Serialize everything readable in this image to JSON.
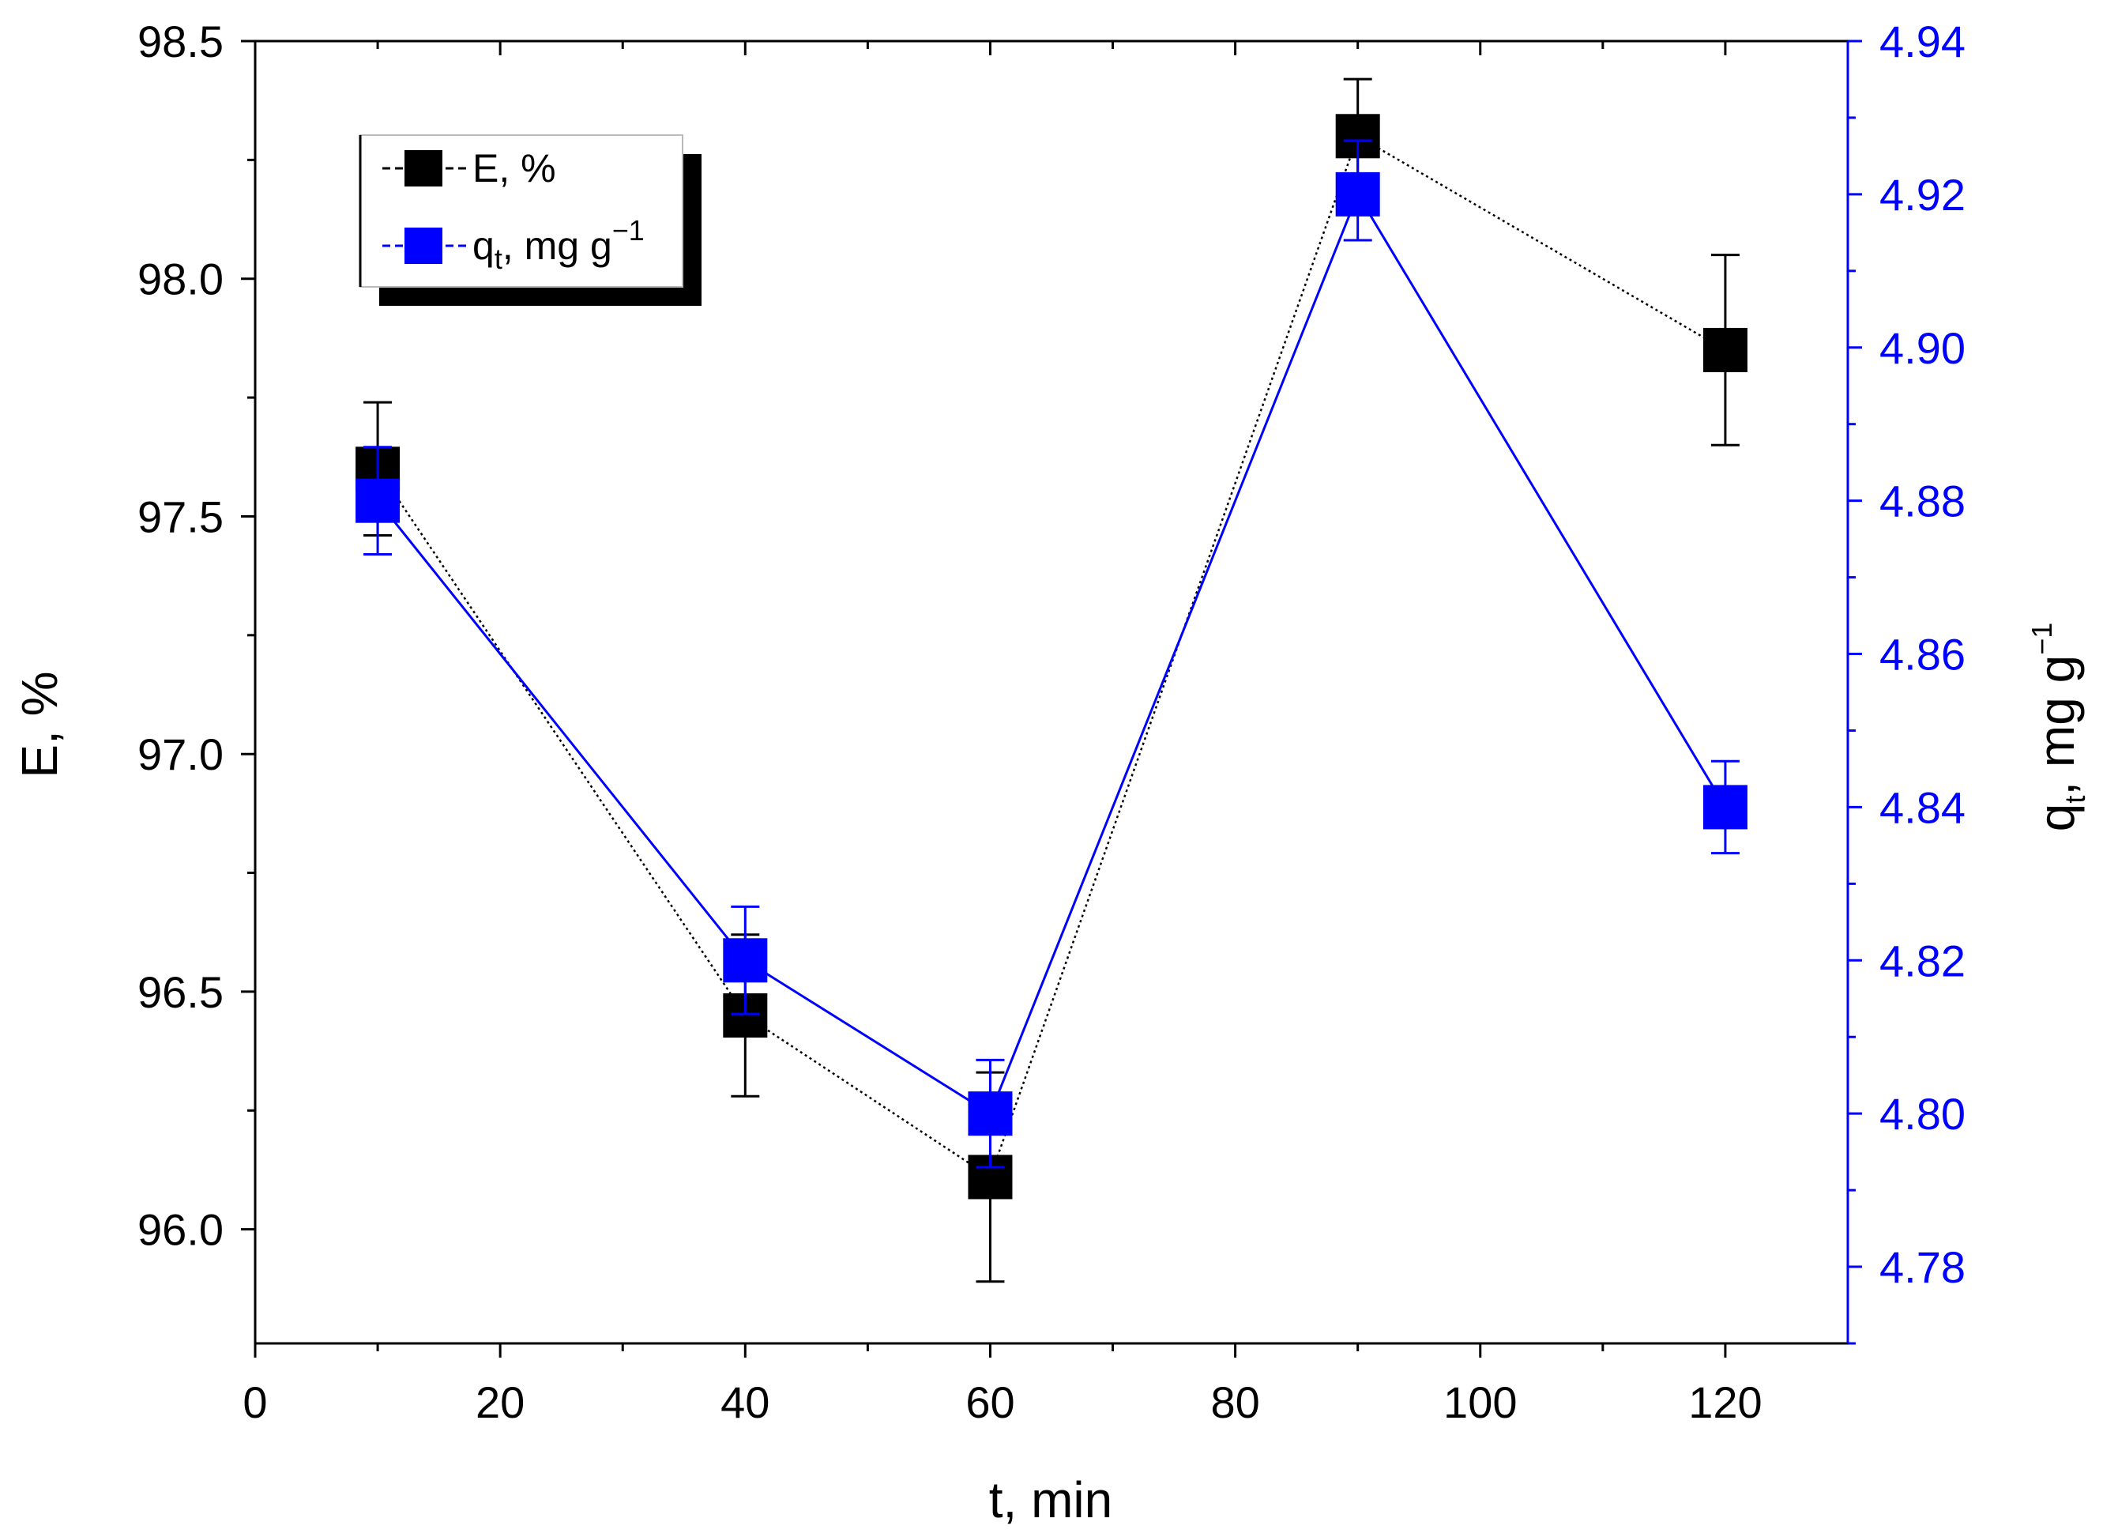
{
  "chart_data": {
    "type": "scatter",
    "x_label": {
      "main": "t, min"
    },
    "y_left_label": {
      "main": "E, %"
    },
    "y_right_label": {
      "q": "q",
      "sub": "t",
      "rest": ", mg g",
      "sup": "−1"
    },
    "x_ticks": [
      "0",
      "20",
      "40",
      "60",
      "80",
      "100",
      "120"
    ],
    "y_left_ticks": [
      "96.0",
      "96.5",
      "97.0",
      "97.5",
      "98.0",
      "98.5"
    ],
    "y_right_ticks": [
      "4.78",
      "4.80",
      "4.82",
      "4.84",
      "4.86",
      "4.88",
      "4.90",
      "4.92",
      "4.94"
    ],
    "x_range": [
      0,
      130
    ],
    "y_left_range": [
      95.76,
      98.5
    ],
    "y_right_range": [
      4.77,
      4.94
    ],
    "legend": {
      "position": "top-left",
      "items": [
        {
          "label": "E, %"
        },
        {
          "q": "q",
          "sub": "t",
          "rest": ", mg g",
          "sup": "−1"
        }
      ]
    },
    "series": [
      {
        "name": "E, %",
        "axis": "left",
        "color": "#000000",
        "line_style": "dotted",
        "x": [
          10,
          40,
          60,
          90,
          120
        ],
        "y": [
          97.6,
          96.45,
          96.11,
          98.3,
          97.85
        ],
        "err_up": [
          0.14,
          0.17,
          0.22,
          0.12,
          0.2
        ],
        "err_down": [
          0.14,
          0.17,
          0.22,
          0.12,
          0.2
        ]
      },
      {
        "name": "q_t, mg g-1",
        "axis": "right",
        "color": "#0000ff",
        "line_style": "solid",
        "x": [
          10,
          40,
          60,
          90,
          120
        ],
        "y": [
          4.88,
          4.82,
          4.8,
          4.92,
          4.84
        ],
        "err_up": [
          0.007,
          0.007,
          0.007,
          0.007,
          0.006
        ],
        "err_down": [
          0.007,
          0.007,
          0.007,
          0.006,
          0.006
        ]
      }
    ]
  }
}
